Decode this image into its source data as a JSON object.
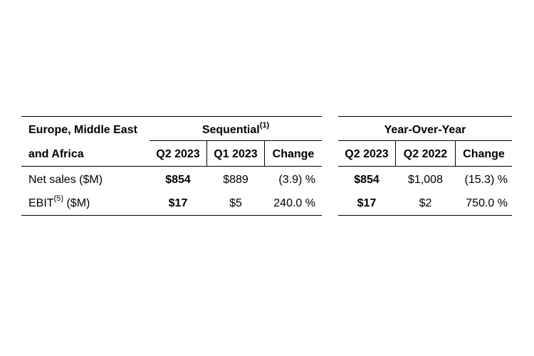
{
  "table": {
    "region_line1": "Europe, Middle East",
    "region_line2": "and Africa",
    "sequential_label": "Sequential",
    "sequential_footnote": "(1)",
    "yoy_label": "Year-Over-Year",
    "columns": {
      "seq_current": "Q2 2023",
      "seq_prior": "Q1 2023",
      "seq_change": "Change",
      "yoy_current": "Q2 2023",
      "yoy_prior": "Q2 2022",
      "yoy_change": "Change"
    },
    "rows": [
      {
        "label": "Net sales ($M)",
        "seq_current": "$854",
        "seq_prior": "$889",
        "seq_change": "(3.9) %",
        "yoy_current": "$854",
        "yoy_prior": "$1,008",
        "yoy_change": "(15.3) %"
      },
      {
        "label_prefix": "EBIT",
        "label_footnote": "(5)",
        "label_suffix": " ($M)",
        "seq_current": "$17",
        "seq_prior": "$5",
        "seq_change": "240.0 %",
        "yoy_current": "$17",
        "yoy_prior": "$2",
        "yoy_change": "750.0 %"
      }
    ]
  }
}
